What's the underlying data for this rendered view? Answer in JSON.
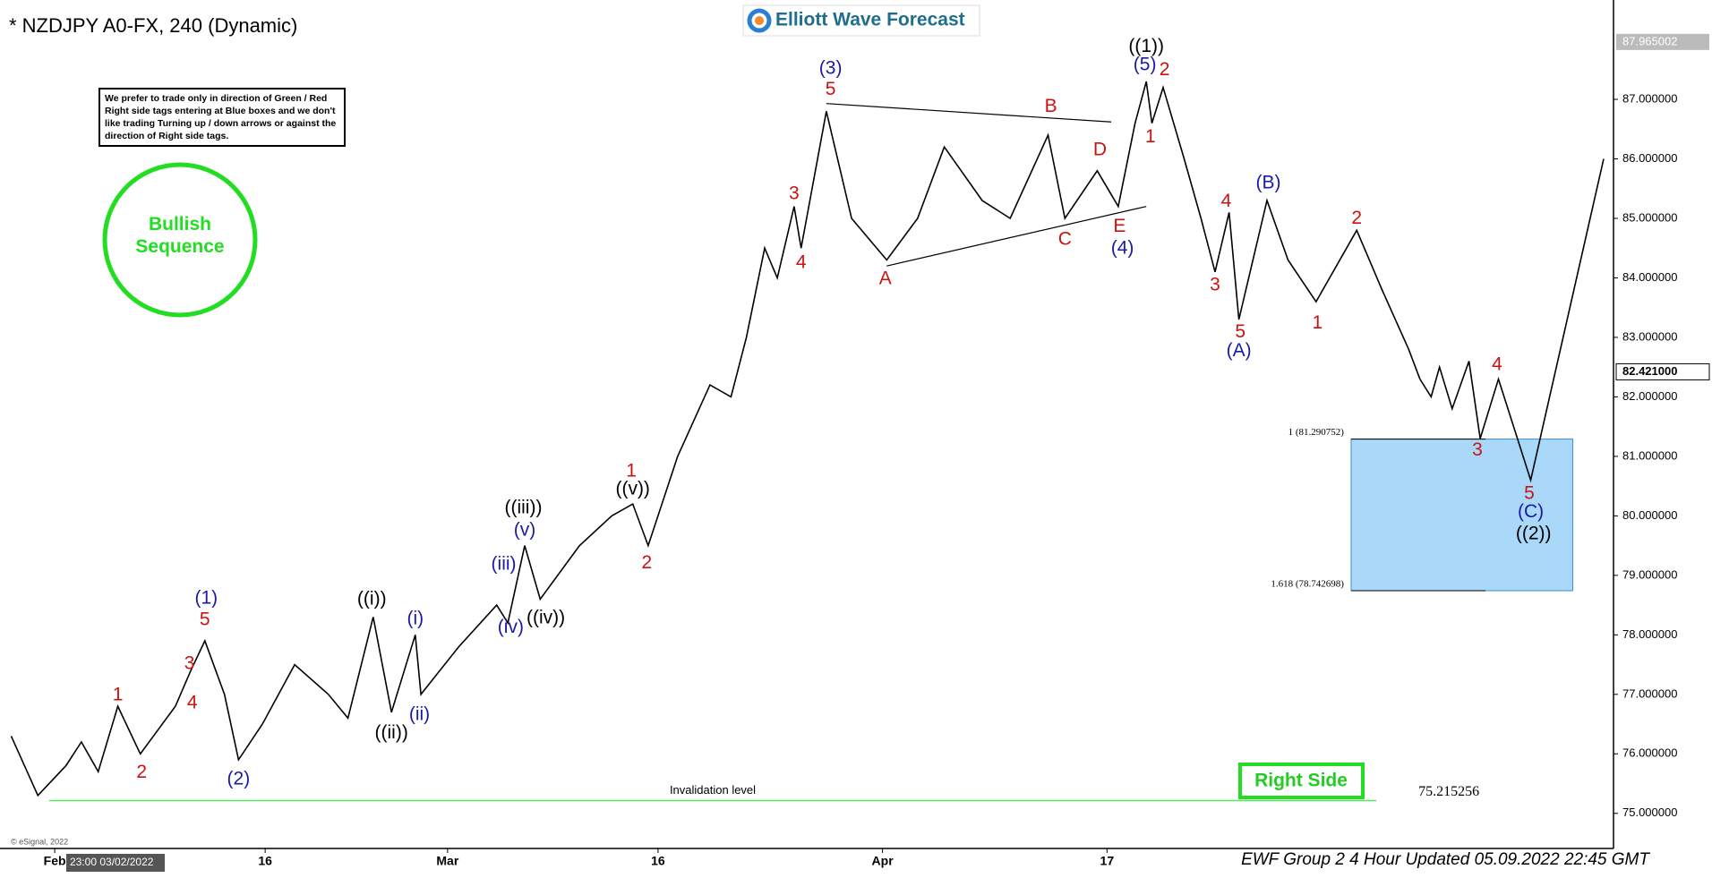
{
  "chart_data": {
    "type": "line",
    "title": "* NZDJPY A0-FX, 240 (Dynamic)",
    "brand": "Elliott Wave Forecast",
    "note": "We prefer to trade only in direction of Green / Red Right side tags entering at Blue boxes and we don't like trading Turning up / down arrows or against the direction of Right side tags.",
    "badge": "Bullish Sequence",
    "side_tag": "Right Side",
    "footer": "EWF Group 2 4 Hour Updated 05.09.2022 22:45 GMT",
    "copyright": "© eSignal, 2022",
    "cursor_time": "23:00 03/02/2022",
    "xlim": [
      -3.9,
      111.1
    ],
    "ylim": [
      74.41,
      88.67
    ],
    "xticks": [
      {
        "value": 0,
        "label": "Feb"
      },
      {
        "value": 15,
        "label": "16"
      },
      {
        "value": 28,
        "label": "Mar"
      },
      {
        "value": 43,
        "label": "16"
      },
      {
        "value": 59,
        "label": "Apr"
      },
      {
        "value": 75,
        "label": "17"
      }
    ],
    "yticks": [
      {
        "value": 75,
        "label": "75.000000"
      },
      {
        "value": 76,
        "label": "76.000000"
      },
      {
        "value": 77,
        "label": "77.000000"
      },
      {
        "value": 78,
        "label": "78.000000"
      },
      {
        "value": 79,
        "label": "79.000000"
      },
      {
        "value": 80,
        "label": "80.000000"
      },
      {
        "value": 81,
        "label": "81.000000"
      },
      {
        "value": 82,
        "label": "82.000000"
      },
      {
        "value": 83,
        "label": "83.000000"
      },
      {
        "value": 84,
        "label": "84.000000"
      },
      {
        "value": 85,
        "label": "85.000000"
      },
      {
        "value": 86,
        "label": "86.000000"
      },
      {
        "value": 87,
        "label": "87.000000"
      }
    ],
    "series": [
      {
        "color": "#000000",
        "x": [
          -3.1,
          -1.2,
          0.8,
          1.9,
          3.1,
          4.5,
          6.1,
          8.6,
          9.7,
          10.7,
          12.1,
          13.1,
          14.8,
          17.1,
          19.5,
          20.9,
          22.7,
          24.0,
          25.7,
          26.1,
          28.8,
          31.5,
          32.3,
          33.5,
          34.6,
          37.4,
          39.7,
          41.2,
          42.3,
          44.4,
          46.7,
          48.2,
          49.3,
          50.6,
          51.5,
          52.7,
          53.2,
          55.0,
          56.8,
          59.3,
          61.5,
          63.4,
          66.1,
          68.1,
          70.8,
          72.0,
          74.3,
          75.8,
          77.0,
          77.8,
          78.2,
          79.0,
          80.5,
          81.7,
          82.7,
          83.7,
          84.4,
          86.4,
          87.9,
          89.9,
          92.8,
          94.6,
          96.5,
          97.3
        ],
        "values": [
          76.3,
          75.3,
          75.8,
          76.2,
          75.7,
          76.8,
          76.0,
          76.8,
          77.4,
          77.9,
          77.0,
          75.9,
          76.5,
          77.5,
          77.0,
          76.6,
          78.3,
          76.7,
          78.0,
          77.0,
          77.8,
          78.5,
          78.2,
          79.5,
          78.6,
          79.5,
          80.0,
          80.2,
          79.5,
          81.0,
          82.2,
          82.0,
          83.0,
          84.5,
          84.0,
          85.2,
          84.5,
          86.8,
          85.0,
          84.3,
          85.0,
          86.2,
          85.3,
          85.0,
          86.4,
          85.0,
          85.8,
          85.2,
          86.6,
          87.3,
          86.6,
          87.2,
          86.0,
          85.0,
          84.1,
          85.1,
          83.3,
          85.3,
          84.3,
          83.6,
          84.8,
          83.8,
          82.8,
          82.3
        ]
      },
      {
        "color": "#000000",
        "x": [
          97.3,
          98.1,
          98.7,
          99.6,
          100.8,
          101.6,
          102.9,
          105.2,
          110.4
        ],
        "values": [
          82.3,
          82.0,
          82.5,
          81.8,
          82.6,
          81.3,
          82.3,
          80.6,
          86.0
        ]
      }
    ],
    "trendlines": [
      {
        "x": [
          55.0,
          75.3
        ],
        "values": [
          86.93,
          86.62
        ]
      },
      {
        "x": [
          59.3,
          77.8
        ],
        "values": [
          84.2,
          85.2
        ]
      }
    ],
    "target_box": {
      "x": [
        92.4,
        108.2
      ],
      "levels": [
        {
          "value": 81.290752,
          "label": "1 (81.290752)"
        },
        {
          "value": 78.742698,
          "label": "1.618 (78.742698)"
        }
      ],
      "color": "#aad8f8"
    },
    "invalidation": {
      "text": "Invalidation level",
      "value": 75.215256,
      "x": [
        -0.4,
        94.2
      ],
      "color": "#5ee65e"
    },
    "high_marker": 87.965002,
    "last_price": {
      "value": 82.421,
      "label": "82.421000"
    },
    "wave_labels": [
      {
        "text": "((1))",
        "x": 77.8,
        "y": 87.88,
        "color": "#000000"
      },
      {
        "text": "(5)",
        "x": 77.7,
        "y": 87.57,
        "color": "#1a1aa6"
      },
      {
        "text": "2",
        "x": 79.1,
        "y": 87.49,
        "color": "#cc1111"
      },
      {
        "text": "1",
        "x": 78.1,
        "y": 86.36,
        "color": "#cc1111"
      },
      {
        "text": "(3)",
        "x": 55.3,
        "y": 87.51,
        "color": "#1a1aa6"
      },
      {
        "text": "5",
        "x": 55.3,
        "y": 87.16,
        "color": "#cc1111"
      },
      {
        "text": "B",
        "x": 71.0,
        "y": 86.87,
        "color": "#cc1111"
      },
      {
        "text": "D",
        "x": 74.5,
        "y": 86.14,
        "color": "#cc1111"
      },
      {
        "text": "3",
        "x": 52.7,
        "y": 85.41,
        "color": "#cc1111"
      },
      {
        "text": "4",
        "x": 53.2,
        "y": 84.25,
        "color": "#cc1111"
      },
      {
        "text": "A",
        "x": 59.2,
        "y": 83.98,
        "color": "#cc1111"
      },
      {
        "text": "C",
        "x": 72.0,
        "y": 84.64,
        "color": "#cc1111"
      },
      {
        "text": "E",
        "x": 75.9,
        "y": 84.86,
        "color": "#cc1111"
      },
      {
        "text": "(4)",
        "x": 76.1,
        "y": 84.49,
        "color": "#1a1aa6"
      },
      {
        "text": "4",
        "x": 83.5,
        "y": 85.28,
        "color": "#cc1111"
      },
      {
        "text": "(B)",
        "x": 86.5,
        "y": 85.59,
        "color": "#1a1aa6"
      },
      {
        "text": "3",
        "x": 82.7,
        "y": 83.87,
        "color": "#cc1111"
      },
      {
        "text": "5",
        "x": 84.5,
        "y": 83.08,
        "color": "#cc1111"
      },
      {
        "text": "(A)",
        "x": 84.4,
        "y": 82.77,
        "color": "#1a1aa6"
      },
      {
        "text": "2",
        "x": 92.8,
        "y": 84.99,
        "color": "#cc1111"
      },
      {
        "text": "1",
        "x": 90.0,
        "y": 83.23,
        "color": "#cc1111"
      },
      {
        "text": "4",
        "x": 102.8,
        "y": 82.53,
        "color": "#cc1111"
      },
      {
        "text": "3",
        "x": 101.4,
        "y": 81.1,
        "color": "#cc1111"
      },
      {
        "text": "5",
        "x": 105.1,
        "y": 80.37,
        "color": "#cc1111"
      },
      {
        "text": "(C)",
        "x": 105.2,
        "y": 80.06,
        "color": "#1a1aa6"
      },
      {
        "text": "((2))",
        "x": 105.4,
        "y": 79.69,
        "color": "#000000"
      },
      {
        "text": "1",
        "x": 41.1,
        "y": 80.74,
        "color": "#cc1111"
      },
      {
        "text": "((v))",
        "x": 41.2,
        "y": 80.44,
        "color": "#000000"
      },
      {
        "text": "2",
        "x": 42.2,
        "y": 79.2,
        "color": "#cc1111"
      },
      {
        "text": "((iii))",
        "x": 33.4,
        "y": 80.13,
        "color": "#000000"
      },
      {
        "text": "(v)",
        "x": 33.5,
        "y": 79.75,
        "color": "#1a1aa6"
      },
      {
        "text": "(iii)",
        "x": 32.0,
        "y": 79.18,
        "color": "#1a1aa6"
      },
      {
        "text": "(iv)",
        "x": 32.5,
        "y": 78.12,
        "color": "#1a1aa6"
      },
      {
        "text": "((iv))",
        "x": 35.0,
        "y": 78.28,
        "color": "#000000"
      },
      {
        "text": "((i))",
        "x": 22.6,
        "y": 78.59,
        "color": "#000000"
      },
      {
        "text": "(i)",
        "x": 25.7,
        "y": 78.26,
        "color": "#1a1aa6"
      },
      {
        "text": "(ii)",
        "x": 26.0,
        "y": 76.65,
        "color": "#1a1aa6"
      },
      {
        "text": "((ii))",
        "x": 24.0,
        "y": 76.34,
        "color": "#000000"
      },
      {
        "text": "(1)",
        "x": 10.8,
        "y": 78.61,
        "color": "#1a1aa6"
      },
      {
        "text": "5",
        "x": 10.7,
        "y": 78.25,
        "color": "#cc1111"
      },
      {
        "text": "3",
        "x": 9.6,
        "y": 77.51,
        "color": "#cc1111"
      },
      {
        "text": "4",
        "x": 9.8,
        "y": 76.85,
        "color": "#cc1111"
      },
      {
        "text": "1",
        "x": 4.5,
        "y": 76.98,
        "color": "#cc1111"
      },
      {
        "text": "2",
        "x": 6.2,
        "y": 75.68,
        "color": "#cc1111"
      },
      {
        "text": "(2)",
        "x": 13.1,
        "y": 75.57,
        "color": "#1a1aa6"
      }
    ]
  }
}
